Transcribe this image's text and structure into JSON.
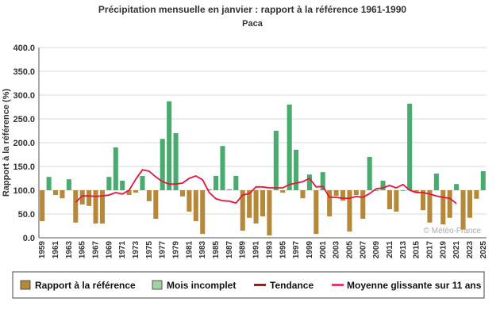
{
  "chart_data": {
    "type": "bar",
    "title": "Précipitation mensuelle en janvier : rapport à la référence 1961-1990",
    "subtitle": "Paca",
    "ylabel": "Rapport à la référence (%)",
    "xlabel": "",
    "ylim": [
      0,
      400
    ],
    "baseline": 100,
    "yticks": [
      "0.0",
      "50.0",
      "100.0",
      "150.0",
      "200.0",
      "250.0",
      "300.0",
      "350.0",
      "400.0"
    ],
    "x_tick_labels": [
      "1959",
      "1961",
      "1963",
      "1965",
      "1967",
      "1969",
      "1971",
      "1973",
      "1975",
      "1977",
      "1979",
      "1981",
      "1983",
      "1985",
      "1987",
      "1989",
      "1991",
      "1993",
      "1995",
      "1997",
      "1999",
      "2001",
      "2003",
      "2005",
      "2007",
      "2009",
      "2011",
      "2013",
      "2015",
      "2017",
      "2019",
      "2021",
      "2023",
      "2025"
    ],
    "grid": true,
    "legend_position": "bottom",
    "credit": "© Météo-France",
    "categories": [
      1959,
      1960,
      1961,
      1962,
      1963,
      1964,
      1965,
      1966,
      1967,
      1968,
      1969,
      1970,
      1971,
      1972,
      1973,
      1974,
      1975,
      1976,
      1977,
      1978,
      1979,
      1980,
      1981,
      1982,
      1983,
      1984,
      1985,
      1986,
      1987,
      1988,
      1989,
      1990,
      1991,
      1992,
      1993,
      1994,
      1995,
      1996,
      1997,
      1998,
      1999,
      2000,
      2001,
      2002,
      2003,
      2004,
      2005,
      2006,
      2007,
      2008,
      2009,
      2010,
      2011,
      2012,
      2013,
      2014,
      2015,
      2016,
      2017,
      2018,
      2019,
      2020,
      2021,
      2022,
      2023,
      2024,
      2025
    ],
    "series": [
      {
        "name": "Rapport à la référence",
        "color": "#b5883a",
        "values": [
          35,
          128,
          90,
          83,
          123,
          32,
          70,
          67,
          30,
          30,
          128,
          190,
          120,
          90,
          95,
          130,
          77,
          40,
          208,
          287,
          220,
          87,
          55,
          35,
          8,
          102,
          130,
          193,
          102,
          130,
          15,
          42,
          30,
          45,
          5,
          225,
          95,
          280,
          185,
          83,
          133,
          8,
          138,
          45,
          88,
          78,
          13,
          90,
          40,
          170,
          100,
          120,
          60,
          55,
          100,
          282,
          95,
          58,
          32,
          135,
          28,
          42,
          113,
          17,
          42,
          82,
          140
        ]
      },
      {
        "name": "Moyenne glissante sur 11 ans",
        "color": "#e8143c",
        "values": [
          null,
          null,
          null,
          null,
          null,
          75,
          88,
          88,
          87,
          88,
          90,
          95,
          92,
          100,
          123,
          143,
          140,
          128,
          118,
          113,
          113,
          115,
          125,
          130,
          122,
          95,
          82,
          78,
          77,
          73,
          90,
          93,
          107,
          107,
          105,
          105,
          105,
          112,
          115,
          118,
          125,
          107,
          108,
          85,
          85,
          83,
          83,
          87,
          85,
          93,
          103,
          105,
          110,
          105,
          112,
          100,
          95,
          95,
          92,
          88,
          85,
          83,
          72,
          null,
          null,
          null,
          null
        ]
      }
    ],
    "legend": [
      {
        "label": "Rapport à la référence",
        "swatch": "#b5883a"
      },
      {
        "label": "Mois incomplet",
        "swatch": "#a3d1a3"
      },
      {
        "label": "Tendance",
        "swatch": "#6b0000"
      },
      {
        "label": "Moyenne glissante sur 11 ans",
        "swatch": "#e8143c"
      }
    ],
    "colors": {
      "above": "#4aab6e",
      "below": "#b5883a"
    }
  }
}
